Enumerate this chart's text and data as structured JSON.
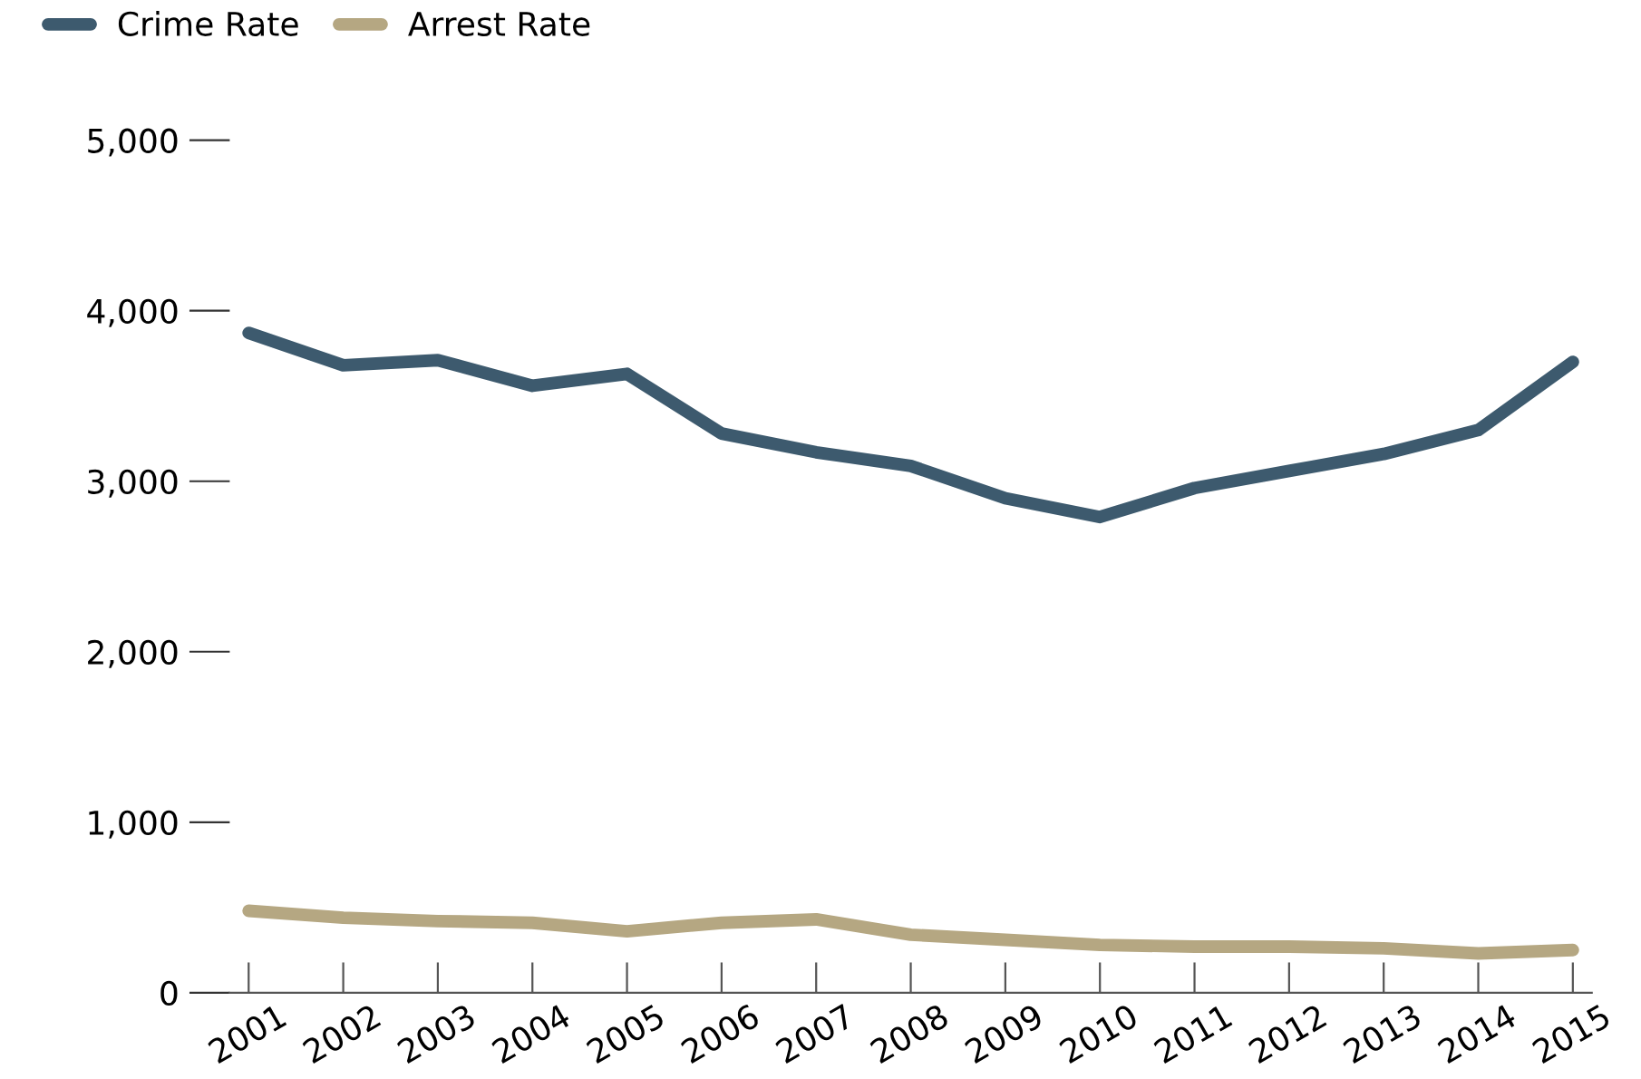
{
  "chart_data": {
    "type": "line",
    "categories": [
      "2001",
      "2002",
      "2003",
      "2004",
      "2005",
      "2006",
      "2007",
      "2008",
      "2009",
      "2010",
      "2011",
      "2012",
      "2013",
      "2014",
      "2015"
    ],
    "series": [
      {
        "name": "Crime Rate",
        "color": "#3d5a6e",
        "values": [
          3870,
          3680,
          3710,
          3560,
          3630,
          3280,
          3170,
          3090,
          2900,
          2790,
          2960,
          3060,
          3160,
          3300,
          3700
        ]
      },
      {
        "name": "Arrest Rate",
        "color": "#b5a782",
        "values": [
          480,
          440,
          420,
          410,
          360,
          410,
          430,
          340,
          310,
          280,
          270,
          270,
          260,
          230,
          250
        ]
      }
    ],
    "ylim": [
      0,
      5000
    ],
    "yticks": [
      {
        "value": 0,
        "label": "0"
      },
      {
        "value": 1000,
        "label": "1,000"
      },
      {
        "value": 2000,
        "label": "2,000"
      },
      {
        "value": 3000,
        "label": "3,000"
      },
      {
        "value": 4000,
        "label": "4,000"
      },
      {
        "value": 5000,
        "label": "5,000"
      }
    ],
    "grid": false,
    "legend": "top left",
    "marker": "none",
    "line_style": "solid"
  }
}
